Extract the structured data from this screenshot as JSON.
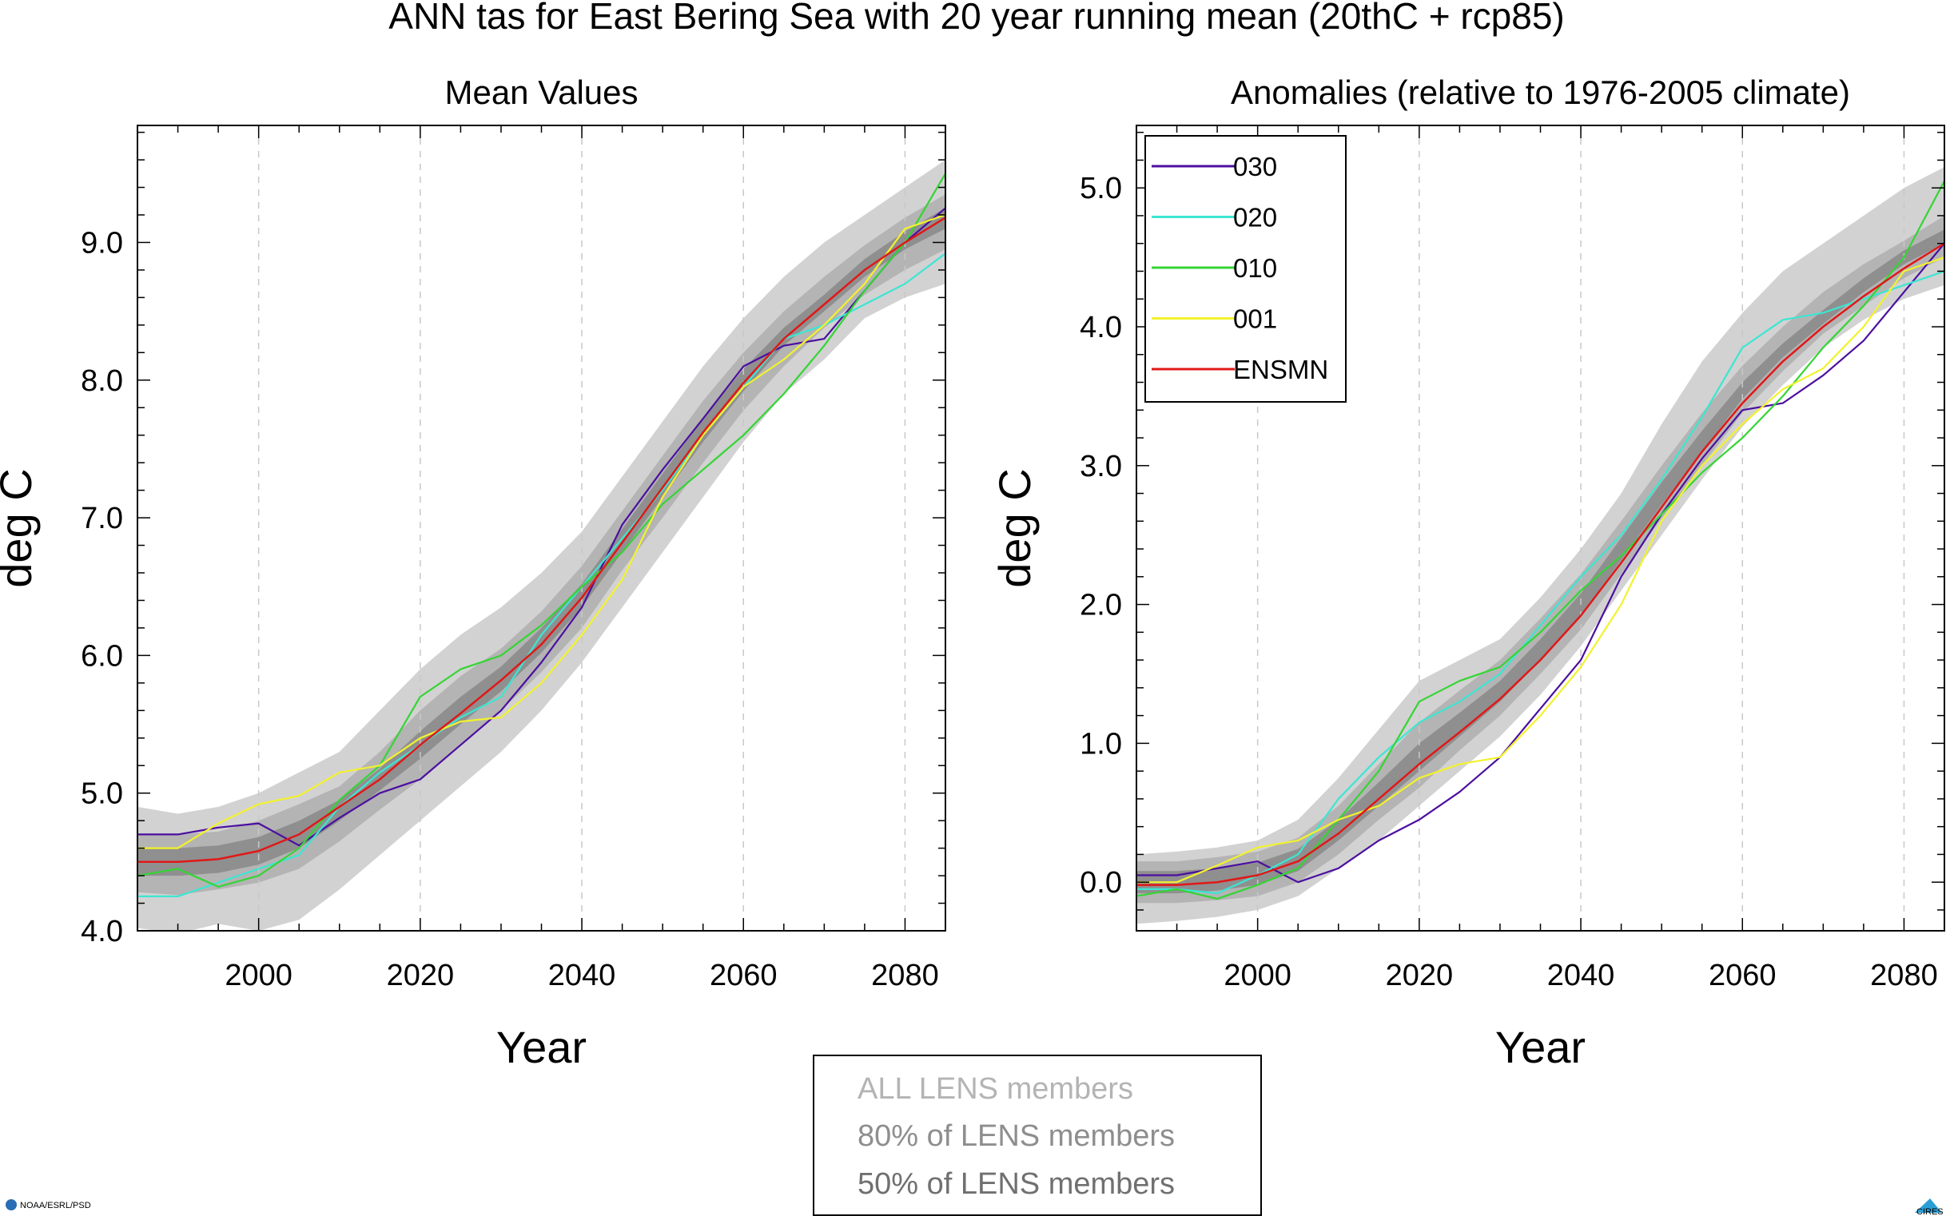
{
  "figure_title": "ANN tas for East Bering Sea with 20 year running mean (20thC + rcp85)",
  "credit_left": "NOAA/ESRL/PSD",
  "credit_right": "CIRES",
  "band_legend": [
    {
      "label": "ALL LENS members",
      "color": "#b4b4b4"
    },
    {
      "label": "80% of LENS members",
      "color": "#8e8e8e"
    },
    {
      "label": "50% of LENS members",
      "color": "#707070"
    }
  ],
  "colors": {
    "band_all": "#d2d2d2",
    "band_80": "#b4b4b4",
    "band_50": "#8f8f8f",
    "030": "#4b0fa0",
    "020": "#3ce6d2",
    "010": "#34d534",
    "001": "#f2f22e",
    "ENSMN": "#e01818"
  },
  "chart_data": [
    {
      "type": "line",
      "title": "Mean Values",
      "xlabel": "Year",
      "ylabel": "deg C",
      "xlim": [
        1985,
        2085
      ],
      "ylim": [
        4.0,
        9.85
      ],
      "xticks": [
        2000,
        2020,
        2040,
        2060,
        2080
      ],
      "yticks": [
        4.0,
        5.0,
        6.0,
        7.0,
        8.0,
        9.0
      ],
      "ytick_labels": [
        "4.0",
        "5.0",
        "6.0",
        "7.0",
        "8.0",
        "9.0"
      ],
      "grid": "dashed vertical at x ticks",
      "x": [
        1985,
        1990,
        1995,
        2000,
        2005,
        2010,
        2015,
        2020,
        2025,
        2030,
        2035,
        2040,
        2045,
        2050,
        2055,
        2060,
        2065,
        2070,
        2075,
        2080,
        2085
      ],
      "bands": [
        {
          "name": "ALL LENS members",
          "lower": [
            4.02,
            3.98,
            4.05,
            4.0,
            4.08,
            4.3,
            4.55,
            4.8,
            5.05,
            5.3,
            5.6,
            5.95,
            6.35,
            6.75,
            7.15,
            7.55,
            7.9,
            8.15,
            8.45,
            8.6,
            8.7
          ],
          "upper": [
            4.9,
            4.85,
            4.9,
            5.0,
            5.15,
            5.3,
            5.6,
            5.9,
            6.15,
            6.35,
            6.6,
            6.9,
            7.3,
            7.7,
            8.1,
            8.45,
            8.75,
            9.0,
            9.2,
            9.4,
            9.6
          ]
        },
        {
          "name": "80% of LENS members",
          "lower": [
            4.28,
            4.26,
            4.3,
            4.35,
            4.45,
            4.65,
            4.88,
            5.1,
            5.35,
            5.6,
            5.88,
            6.2,
            6.62,
            7.0,
            7.4,
            7.78,
            8.1,
            8.38,
            8.62,
            8.8,
            8.95
          ],
          "upper": [
            4.7,
            4.7,
            4.72,
            4.8,
            4.92,
            5.05,
            5.3,
            5.6,
            5.85,
            6.05,
            6.32,
            6.65,
            7.05,
            7.45,
            7.85,
            8.2,
            8.5,
            8.75,
            8.98,
            9.18,
            9.35
          ]
        },
        {
          "name": "50% of LENS members",
          "lower": [
            4.4,
            4.4,
            4.42,
            4.48,
            4.6,
            4.8,
            5.02,
            5.25,
            5.5,
            5.74,
            6.02,
            6.35,
            6.75,
            7.15,
            7.55,
            7.92,
            8.25,
            8.5,
            8.75,
            8.95,
            9.1
          ],
          "upper": [
            4.6,
            4.6,
            4.62,
            4.68,
            4.8,
            4.95,
            5.18,
            5.45,
            5.7,
            5.92,
            6.2,
            6.52,
            6.92,
            7.32,
            7.72,
            8.08,
            8.38,
            8.62,
            8.88,
            9.08,
            9.25
          ]
        }
      ],
      "series": [
        {
          "name": "030",
          "values": [
            4.7,
            4.7,
            4.75,
            4.78,
            4.62,
            4.82,
            5.0,
            5.1,
            5.35,
            5.6,
            5.95,
            6.35,
            6.95,
            7.35,
            7.72,
            8.1,
            8.25,
            8.3,
            8.65,
            9.0,
            9.25
          ]
        },
        {
          "name": "020",
          "values": [
            4.25,
            4.25,
            4.35,
            4.45,
            4.55,
            4.9,
            5.15,
            5.35,
            5.55,
            5.7,
            6.15,
            6.5,
            6.85,
            7.2,
            7.6,
            7.95,
            8.3,
            8.4,
            8.55,
            8.7,
            8.92
          ]
        },
        {
          "name": "010",
          "values": [
            4.4,
            4.45,
            4.32,
            4.4,
            4.6,
            4.95,
            5.2,
            5.7,
            5.9,
            6.0,
            6.22,
            6.5,
            6.75,
            7.1,
            7.35,
            7.6,
            7.9,
            8.25,
            8.65,
            9.0,
            9.5
          ]
        },
        {
          "name": "001",
          "values": [
            4.6,
            4.6,
            4.78,
            4.92,
            4.98,
            5.15,
            5.2,
            5.4,
            5.52,
            5.55,
            5.8,
            6.15,
            6.55,
            7.15,
            7.6,
            7.95,
            8.15,
            8.4,
            8.7,
            9.1,
            9.2
          ]
        },
        {
          "name": "ENSMN",
          "values": [
            4.5,
            4.5,
            4.52,
            4.58,
            4.7,
            4.9,
            5.1,
            5.35,
            5.58,
            5.82,
            6.08,
            6.42,
            6.82,
            7.22,
            7.62,
            7.98,
            8.3,
            8.55,
            8.8,
            9.0,
            9.18
          ]
        }
      ]
    },
    {
      "type": "line",
      "title": "Anomalies (relative to 1976-2005 climate)",
      "xlabel": "Year",
      "ylabel": "deg C",
      "xlim": [
        1985,
        2085
      ],
      "ylim": [
        -0.35,
        5.45
      ],
      "xticks": [
        2000,
        2020,
        2040,
        2060,
        2080
      ],
      "yticks": [
        0.0,
        1.0,
        2.0,
        3.0,
        4.0,
        5.0
      ],
      "ytick_labels": [
        "0.0",
        "1.0",
        "2.0",
        "3.0",
        "4.0",
        "5.0"
      ],
      "grid": "dashed vertical at x ticks",
      "legend": "top-left",
      "x": [
        1985,
        1990,
        1995,
        2000,
        2005,
        2010,
        2015,
        2020,
        2025,
        2030,
        2035,
        2040,
        2045,
        2050,
        2055,
        2060,
        2065,
        2070,
        2075,
        2080,
        2085
      ],
      "bands": [
        {
          "name": "ALL LENS members",
          "lower": [
            -0.3,
            -0.28,
            -0.25,
            -0.2,
            -0.1,
            0.1,
            0.3,
            0.55,
            0.8,
            1.05,
            1.35,
            1.7,
            2.1,
            2.5,
            2.9,
            3.28,
            3.58,
            3.85,
            4.05,
            4.2,
            4.3
          ],
          "upper": [
            0.2,
            0.22,
            0.25,
            0.3,
            0.45,
            0.75,
            1.1,
            1.45,
            1.6,
            1.75,
            2.05,
            2.4,
            2.8,
            3.3,
            3.75,
            4.1,
            4.4,
            4.6,
            4.8,
            5.0,
            5.15
          ]
        },
        {
          "name": "80% of LENS members",
          "lower": [
            -0.15,
            -0.15,
            -0.13,
            -0.1,
            0.0,
            0.2,
            0.45,
            0.68,
            0.95,
            1.2,
            1.5,
            1.82,
            2.22,
            2.62,
            3.0,
            3.38,
            3.68,
            3.95,
            4.15,
            4.35,
            4.5
          ],
          "upper": [
            0.15,
            0.15,
            0.18,
            0.22,
            0.32,
            0.55,
            0.85,
            1.15,
            1.38,
            1.6,
            1.9,
            2.22,
            2.6,
            3.0,
            3.38,
            3.72,
            4.0,
            4.25,
            4.45,
            4.62,
            4.8
          ]
        },
        {
          "name": "50% of LENS members",
          "lower": [
            -0.08,
            -0.08,
            -0.06,
            -0.02,
            0.08,
            0.3,
            0.55,
            0.8,
            1.05,
            1.3,
            1.6,
            1.92,
            2.32,
            2.72,
            3.1,
            3.48,
            3.78,
            4.02,
            4.25,
            4.45,
            4.6
          ],
          "upper": [
            0.08,
            0.08,
            0.1,
            0.14,
            0.24,
            0.45,
            0.72,
            1.0,
            1.22,
            1.45,
            1.75,
            2.08,
            2.48,
            2.88,
            3.25,
            3.6,
            3.88,
            4.12,
            4.35,
            4.55,
            4.7
          ]
        }
      ],
      "series": [
        {
          "name": "030",
          "values": [
            0.05,
            0.05,
            0.1,
            0.15,
            0.0,
            0.1,
            0.3,
            0.45,
            0.65,
            0.9,
            1.25,
            1.6,
            2.2,
            2.65,
            3.05,
            3.4,
            3.45,
            3.65,
            3.9,
            4.25,
            4.6
          ]
        },
        {
          "name": "020",
          "values": [
            -0.05,
            -0.05,
            -0.08,
            0.05,
            0.2,
            0.6,
            0.9,
            1.15,
            1.3,
            1.5,
            1.85,
            2.2,
            2.5,
            2.9,
            3.35,
            3.85,
            4.05,
            4.1,
            4.2,
            4.3,
            4.4
          ]
        },
        {
          "name": "010",
          "values": [
            -0.1,
            -0.05,
            -0.12,
            -0.02,
            0.1,
            0.45,
            0.8,
            1.3,
            1.45,
            1.55,
            1.8,
            2.1,
            2.35,
            2.65,
            2.95,
            3.2,
            3.5,
            3.85,
            4.15,
            4.5,
            5.05
          ]
        },
        {
          "name": "001",
          "values": [
            0.0,
            0.0,
            0.12,
            0.25,
            0.3,
            0.45,
            0.55,
            0.75,
            0.85,
            0.9,
            1.2,
            1.55,
            2.0,
            2.6,
            3.0,
            3.3,
            3.55,
            3.7,
            4.0,
            4.4,
            4.5
          ]
        },
        {
          "name": "ENSMN",
          "values": [
            -0.02,
            -0.02,
            0.0,
            0.05,
            0.15,
            0.35,
            0.6,
            0.85,
            1.08,
            1.32,
            1.6,
            1.92,
            2.3,
            2.7,
            3.1,
            3.45,
            3.75,
            4.0,
            4.22,
            4.42,
            4.6
          ]
        }
      ]
    }
  ]
}
